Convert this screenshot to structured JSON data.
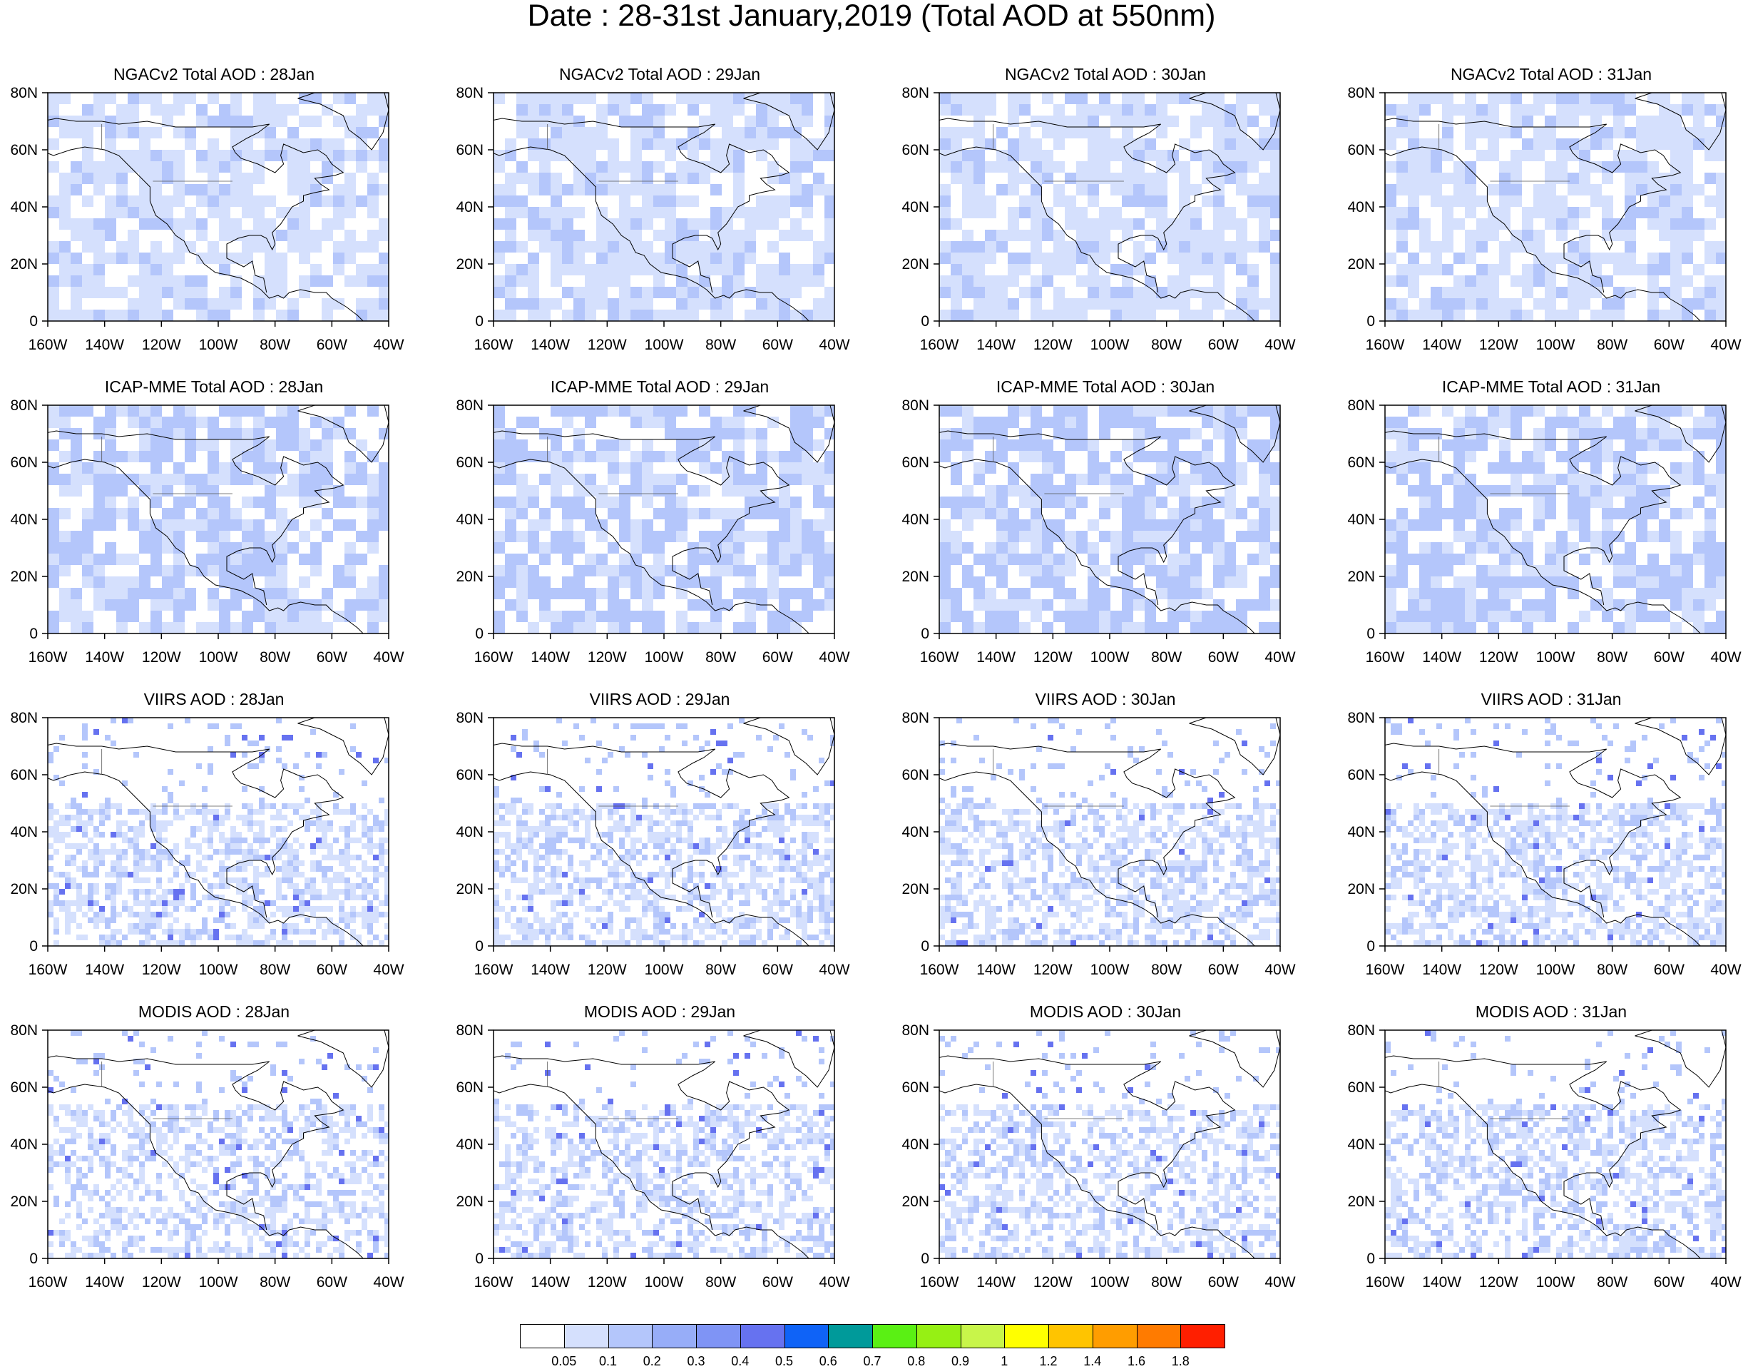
{
  "title": "Date : 28-31st January,2019 (Total AOD at 550nm)",
  "panels": [
    {
      "title": "NGACv2 Total AOD : 28Jan",
      "row": 0,
      "col": 0
    },
    {
      "title": "NGACv2 Total AOD : 29Jan",
      "row": 0,
      "col": 1
    },
    {
      "title": "NGACv2 Total AOD : 30Jan",
      "row": 0,
      "col": 2
    },
    {
      "title": "NGACv2 Total AOD : 31Jan",
      "row": 0,
      "col": 3
    },
    {
      "title": "ICAP-MME Total AOD : 28Jan",
      "row": 1,
      "col": 0
    },
    {
      "title": "ICAP-MME Total AOD : 29Jan",
      "row": 1,
      "col": 1
    },
    {
      "title": "ICAP-MME Total AOD : 30Jan",
      "row": 1,
      "col": 2
    },
    {
      "title": "ICAP-MME Total AOD : 31Jan",
      "row": 1,
      "col": 3
    },
    {
      "title": "VIIRS AOD : 28Jan",
      "row": 2,
      "col": 0
    },
    {
      "title": "VIIRS AOD : 29Jan",
      "row": 2,
      "col": 1
    },
    {
      "title": "VIIRS AOD : 30Jan",
      "row": 2,
      "col": 2
    },
    {
      "title": "VIIRS AOD : 31Jan",
      "row": 2,
      "col": 3
    },
    {
      "title": "MODIS AOD : 28Jan",
      "row": 3,
      "col": 0
    },
    {
      "title": "MODIS AOD : 29Jan",
      "row": 3,
      "col": 1
    },
    {
      "title": "MODIS AOD : 30Jan",
      "row": 3,
      "col": 2
    },
    {
      "title": "MODIS AOD : 31Jan",
      "row": 3,
      "col": 3
    }
  ],
  "axes": {
    "x_ticks": [
      "160W",
      "140W",
      "120W",
      "100W",
      "80W",
      "60W",
      "40W"
    ],
    "y_ticks": [
      "0",
      "20N",
      "40N",
      "60N",
      "80N"
    ],
    "lon_range": [
      -160,
      -40
    ],
    "lat_range": [
      0,
      80
    ]
  },
  "colorbar": {
    "labels": [
      "0.05",
      "0.1",
      "0.2",
      "0.3",
      "0.4",
      "0.5",
      "0.6",
      "0.7",
      "0.8",
      "0.9",
      "1",
      "1.2",
      "1.4",
      "1.6",
      "1.8"
    ],
    "colors": [
      "#ffffff",
      "#d5e0fd",
      "#b4c6fb",
      "#97adf8",
      "#7f94f5",
      "#6672f0",
      "#0f63f7",
      "#009a9a",
      "#5af014",
      "#96f014",
      "#c8f54a",
      "#ffff00",
      "#ffc400",
      "#ff9d00",
      "#ff7b00",
      "#ff1f00"
    ]
  }
}
